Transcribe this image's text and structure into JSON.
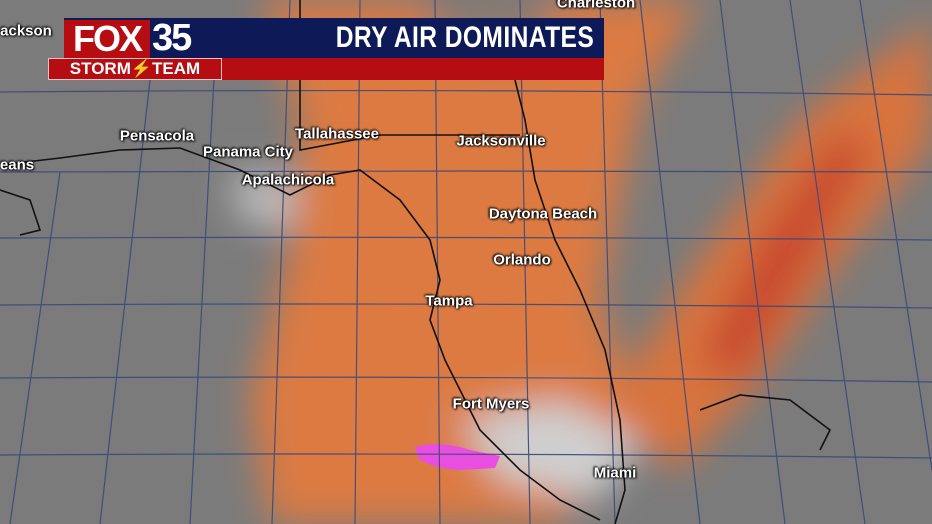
{
  "banner": {
    "logo_brand": "FOX",
    "logo_number": "35",
    "logo_team": "STORM⚡TEAM",
    "title": "DRY AIR DOMINATES"
  },
  "colors": {
    "dry_air": "#e0743a",
    "very_dry_air": "#c9452a",
    "moist_gray": "#8a8a8a",
    "high_moisture": "#e84ee0",
    "banner_navy": "#0e1a57",
    "banner_red": "#b50d12"
  },
  "cities": [
    {
      "name": "Charleston"
    },
    {
      "name": "ackson"
    },
    {
      "name": "Pensacola"
    },
    {
      "name": "Tallahassee"
    },
    {
      "name": "Jacksonville"
    },
    {
      "name": "Panama City"
    },
    {
      "name": "Apalachicola"
    },
    {
      "name": "eans"
    },
    {
      "name": "Daytona Beach"
    },
    {
      "name": "Orlando"
    },
    {
      "name": "Tampa"
    },
    {
      "name": "Fort Myers"
    },
    {
      "name": "Miami"
    }
  ]
}
